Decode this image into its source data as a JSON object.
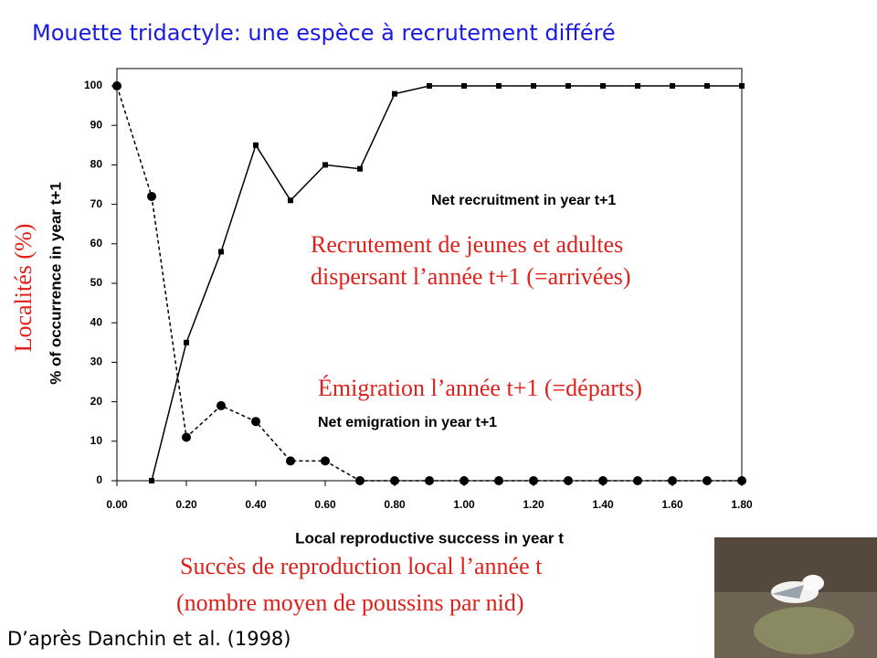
{
  "slide_title": "Mouette tridactyle: une espèce à recrutement différé",
  "source": "D’après Danchin et al. (1998)",
  "chart_data": {
    "type": "line",
    "y_label": "% of occurrence in year t+1",
    "y_label_fr": "Localités (%)",
    "x_label": "Local reproductive success in year t",
    "x_label_fr": [
      "Succès de reproduction local l’année t",
      "(nombre moyen de poussins par nid)"
    ],
    "annotations": [
      [
        "Recrutement de jeunes et adultes",
        "dispersant l’année t+1 (=arrivées)"
      ],
      [
        "Émigration l’année t+1 (=départs)"
      ]
    ],
    "x": [
      0.0,
      0.1,
      0.2,
      0.3,
      0.4,
      0.5,
      0.6,
      0.7,
      0.8,
      0.9,
      1.0,
      1.1,
      1.2,
      1.3,
      1.4,
      1.5,
      1.6,
      1.7,
      1.8
    ],
    "series": [
      {
        "name": "Net recruitment in year t+1",
        "color": "#000000",
        "marker": "square",
        "dash": false,
        "values": [
          null,
          0,
          35,
          58,
          85,
          71,
          80,
          79,
          98,
          100,
          100,
          100,
          100,
          100,
          100,
          100,
          100,
          100,
          100
        ]
      },
      {
        "name": "Net emigration in year t+1",
        "color": "#000000",
        "marker": "circle",
        "dash": true,
        "values": [
          100,
          72,
          11,
          19,
          15,
          5,
          5,
          0,
          0,
          0,
          0,
          0,
          0,
          0,
          0,
          0,
          0,
          0,
          0
        ]
      }
    ],
    "xlim": [
      0,
      1.8
    ],
    "xticks": [
      {
        "value": 0,
        "label": "0.00"
      },
      {
        "value": 0.2,
        "label": "0.20"
      },
      {
        "value": 0.4,
        "label": "0.40"
      },
      {
        "value": 0.6,
        "label": "0.60"
      },
      {
        "value": 0.8,
        "label": "0.80"
      },
      {
        "value": 1.0,
        "label": "1.00"
      },
      {
        "value": 1.2,
        "label": "1.20"
      },
      {
        "value": 1.4,
        "label": "1.40"
      },
      {
        "value": 1.6,
        "label": "1.60"
      },
      {
        "value": 1.8,
        "label": "1.80"
      }
    ],
    "ylim": [
      0,
      100
    ],
    "yticks": [
      0,
      10,
      20,
      30,
      40,
      50,
      60,
      70,
      80,
      90,
      100
    ],
    "grid": false
  }
}
